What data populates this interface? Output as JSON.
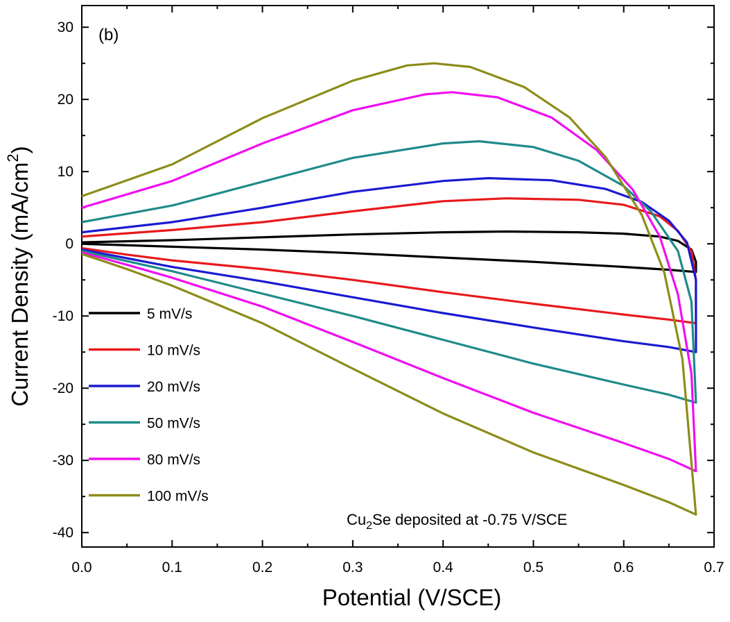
{
  "chart_data": {
    "type": "line",
    "panel_label": "(b)",
    "xlabel": "Potential (V/SCE)",
    "ylabel_main": "Current Density (mA/cm",
    "ylabel_sup": "2",
    "ylabel_end": ")",
    "xlim": [
      0.0,
      0.7
    ],
    "ylim": [
      -42,
      33
    ],
    "xticks": [
      0.0,
      0.1,
      0.2,
      0.3,
      0.4,
      0.5,
      0.6,
      0.7
    ],
    "xtick_labels": [
      "0.0",
      "0.1",
      "0.2",
      "0.3",
      "0.4",
      "0.5",
      "0.6",
      "0.7"
    ],
    "yticks": [
      30,
      20,
      10,
      0,
      -10,
      -20,
      -30,
      -40
    ],
    "ytick_labels": [
      "30",
      "20",
      "10",
      "0",
      "-10",
      "-20",
      "-30",
      "-40"
    ],
    "grid": false,
    "legend_position": "bottom-left",
    "annotation": {
      "prefix": "Cu",
      "sub": "2",
      "suffix": "Se deposited at -0.75 V/SCE"
    },
    "series": [
      {
        "name": "5 mV/s",
        "color": "#000000",
        "upper": [
          [
            0.0,
            0.2
          ],
          [
            0.1,
            0.5
          ],
          [
            0.2,
            0.9
          ],
          [
            0.3,
            1.3
          ],
          [
            0.4,
            1.6
          ],
          [
            0.47,
            1.7
          ],
          [
            0.55,
            1.6
          ],
          [
            0.6,
            1.4
          ],
          [
            0.64,
            1.0
          ],
          [
            0.66,
            0.4
          ],
          [
            0.675,
            -0.8
          ],
          [
            0.68,
            -2.5
          ],
          [
            0.68,
            -3.9
          ]
        ],
        "lower": [
          [
            0.0,
            0.0
          ],
          [
            0.1,
            -0.4
          ],
          [
            0.2,
            -0.8
          ],
          [
            0.3,
            -1.3
          ],
          [
            0.4,
            -1.9
          ],
          [
            0.5,
            -2.5
          ],
          [
            0.6,
            -3.2
          ],
          [
            0.65,
            -3.6
          ],
          [
            0.68,
            -3.9
          ]
        ]
      },
      {
        "name": "10 mV/s",
        "color": "#e8191b",
        "upper": [
          [
            0.0,
            1.0
          ],
          [
            0.1,
            1.9
          ],
          [
            0.2,
            3.0
          ],
          [
            0.3,
            4.5
          ],
          [
            0.4,
            5.9
          ],
          [
            0.47,
            6.3
          ],
          [
            0.55,
            6.1
          ],
          [
            0.6,
            5.4
          ],
          [
            0.64,
            3.8
          ],
          [
            0.66,
            1.8
          ],
          [
            0.675,
            -1.0
          ],
          [
            0.68,
            -5.0
          ],
          [
            0.68,
            -11.0
          ]
        ],
        "lower": [
          [
            0.0,
            -0.6
          ],
          [
            0.05,
            -1.5
          ],
          [
            0.1,
            -2.3
          ],
          [
            0.2,
            -3.5
          ],
          [
            0.3,
            -5.0
          ],
          [
            0.4,
            -6.7
          ],
          [
            0.5,
            -8.3
          ],
          [
            0.6,
            -9.8
          ],
          [
            0.65,
            -10.5
          ],
          [
            0.68,
            -11.0
          ]
        ]
      },
      {
        "name": "20 mV/s",
        "color": "#1a1ad1",
        "upper": [
          [
            0.0,
            1.6
          ],
          [
            0.1,
            3.0
          ],
          [
            0.2,
            5.0
          ],
          [
            0.3,
            7.2
          ],
          [
            0.4,
            8.7
          ],
          [
            0.45,
            9.1
          ],
          [
            0.52,
            8.8
          ],
          [
            0.58,
            7.6
          ],
          [
            0.62,
            5.8
          ],
          [
            0.65,
            3.2
          ],
          [
            0.67,
            0.2
          ],
          [
            0.68,
            -5.0
          ],
          [
            0.68,
            -15.0
          ]
        ],
        "lower": [
          [
            0.0,
            -0.8
          ],
          [
            0.05,
            -2.0
          ],
          [
            0.1,
            -3.2
          ],
          [
            0.2,
            -5.2
          ],
          [
            0.3,
            -7.4
          ],
          [
            0.4,
            -9.6
          ],
          [
            0.5,
            -11.6
          ],
          [
            0.6,
            -13.5
          ],
          [
            0.65,
            -14.3
          ],
          [
            0.68,
            -15.0
          ]
        ]
      },
      {
        "name": "50 mV/s",
        "color": "#1f8a8a",
        "upper": [
          [
            0.0,
            3.0
          ],
          [
            0.1,
            5.3
          ],
          [
            0.2,
            8.6
          ],
          [
            0.3,
            11.9
          ],
          [
            0.4,
            13.9
          ],
          [
            0.44,
            14.2
          ],
          [
            0.5,
            13.4
          ],
          [
            0.55,
            11.5
          ],
          [
            0.6,
            8.0
          ],
          [
            0.63,
            4.5
          ],
          [
            0.66,
            -1.0
          ],
          [
            0.675,
            -8.0
          ],
          [
            0.68,
            -22.0
          ]
        ],
        "lower": [
          [
            0.0,
            -1.0
          ],
          [
            0.05,
            -2.4
          ],
          [
            0.1,
            -3.8
          ],
          [
            0.2,
            -6.9
          ],
          [
            0.3,
            -10.0
          ],
          [
            0.4,
            -13.3
          ],
          [
            0.5,
            -16.6
          ],
          [
            0.6,
            -19.5
          ],
          [
            0.65,
            -20.9
          ],
          [
            0.68,
            -22.0
          ]
        ]
      },
      {
        "name": "80 mV/s",
        "color": "#f00ff0",
        "upper": [
          [
            0.0,
            5.0
          ],
          [
            0.1,
            8.7
          ],
          [
            0.2,
            13.9
          ],
          [
            0.3,
            18.5
          ],
          [
            0.38,
            20.7
          ],
          [
            0.41,
            21.0
          ],
          [
            0.46,
            20.3
          ],
          [
            0.52,
            17.5
          ],
          [
            0.57,
            13.0
          ],
          [
            0.61,
            7.5
          ],
          [
            0.64,
            1.0
          ],
          [
            0.66,
            -7.0
          ],
          [
            0.675,
            -18.0
          ],
          [
            0.68,
            -31.5
          ]
        ],
        "lower": [
          [
            0.0,
            -1.2
          ],
          [
            0.05,
            -2.9
          ],
          [
            0.1,
            -4.7
          ],
          [
            0.2,
            -8.7
          ],
          [
            0.3,
            -13.6
          ],
          [
            0.4,
            -18.6
          ],
          [
            0.5,
            -23.4
          ],
          [
            0.6,
            -27.6
          ],
          [
            0.65,
            -29.8
          ],
          [
            0.68,
            -31.5
          ]
        ]
      },
      {
        "name": "100 mV/s",
        "color": "#8c8c1a",
        "upper": [
          [
            0.0,
            6.6
          ],
          [
            0.1,
            11.0
          ],
          [
            0.2,
            17.4
          ],
          [
            0.3,
            22.6
          ],
          [
            0.36,
            24.7
          ],
          [
            0.39,
            25.0
          ],
          [
            0.43,
            24.5
          ],
          [
            0.49,
            21.7
          ],
          [
            0.54,
            17.5
          ],
          [
            0.58,
            12.0
          ],
          [
            0.62,
            4.0
          ],
          [
            0.645,
            -4.0
          ],
          [
            0.665,
            -16.0
          ],
          [
            0.68,
            -37.5
          ]
        ],
        "lower": [
          [
            0.0,
            -1.4
          ],
          [
            0.05,
            -3.5
          ],
          [
            0.1,
            -5.8
          ],
          [
            0.2,
            -11.0
          ],
          [
            0.3,
            -17.3
          ],
          [
            0.4,
            -23.5
          ],
          [
            0.5,
            -28.9
          ],
          [
            0.6,
            -33.4
          ],
          [
            0.65,
            -35.8
          ],
          [
            0.68,
            -37.5
          ]
        ]
      }
    ]
  }
}
